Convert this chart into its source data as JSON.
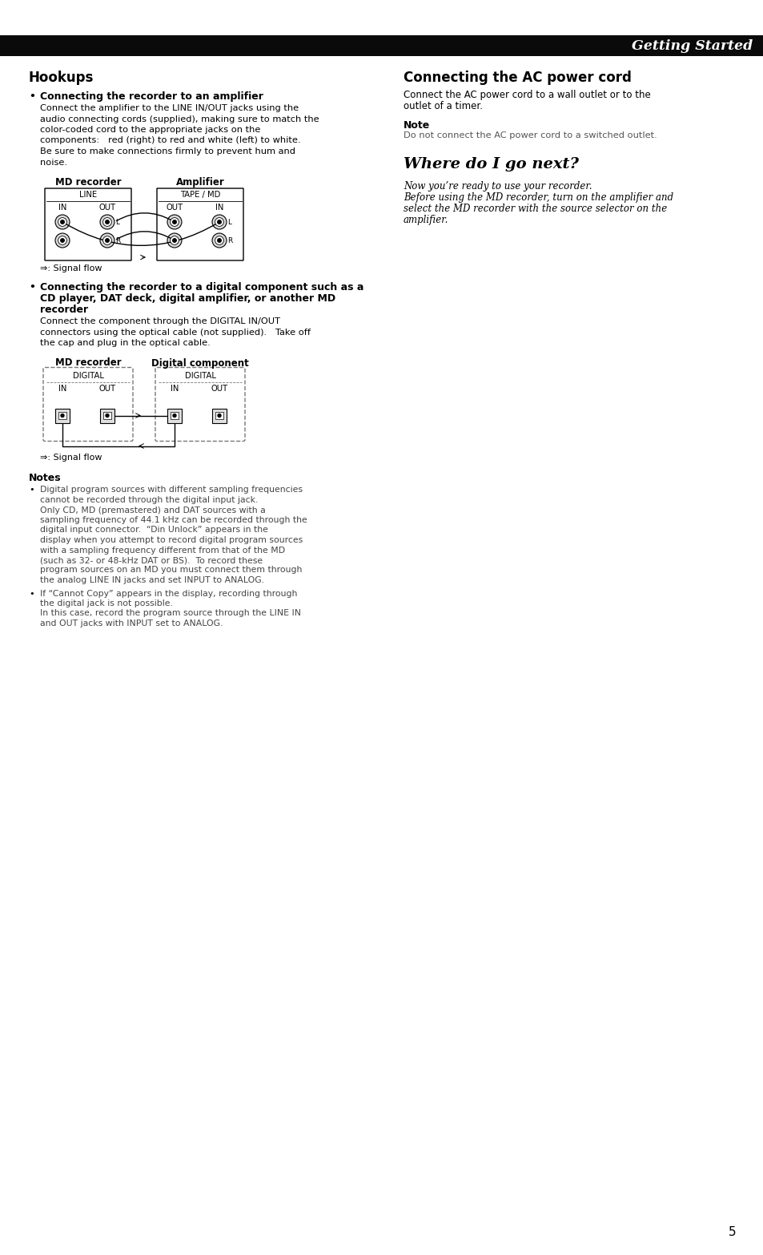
{
  "page_bg": "#ffffff",
  "header_bg": "#0a0a0a",
  "header_text": "Getting Started",
  "header_text_color": "#ffffff",
  "page_number": "5",
  "sections": {
    "hookups_title": "Hookups",
    "bullet1_title": "Connecting the recorder to an amplifier",
    "bullet1_body1": "Connect the amplifier to the LINE IN/OUT jacks using the",
    "bullet1_body2": "audio connecting cords (supplied), making sure to match the",
    "bullet1_body3": "color-coded cord to the appropriate jacks on the",
    "bullet1_body4": "components:   red (right) to red and white (left) to white.",
    "bullet1_body5": "Be sure to make connections firmly to prevent hum and",
    "bullet1_body6": "noise.",
    "diagram1_label_left": "MD recorder",
    "diagram1_label_right": "Amplifier",
    "diagram1_sub_left": "LINE",
    "diagram1_sub_right": "TAPE / MD",
    "signal_flow1": "⇒: Signal flow",
    "bullet2_title1": "Connecting the recorder to a digital component such as a",
    "bullet2_title2": "CD player, DAT deck, digital amplifier, or another MD",
    "bullet2_title3": "recorder",
    "bullet2_body1": "Connect the component through the DIGITAL IN/OUT",
    "bullet2_body2": "connectors using the optical cable (not supplied).   Take off",
    "bullet2_body3": "the cap and plug in the optical cable.",
    "diagram2_label_left": "MD recorder",
    "diagram2_label_right": "Digital component",
    "diagram2_sub_left": "DIGITAL",
    "diagram2_sub_right": "DIGITAL",
    "signal_flow2": "⇒: Signal flow",
    "notes_title": "Notes",
    "note1_lines": [
      "Digital program sources with different sampling frequencies",
      "cannot be recorded through the digital input jack.",
      "Only CD, MD (premastered) and DAT sources with a",
      "sampling frequency of 44.1 kHz can be recorded through the",
      "digital input connector.  “Din Unlock” appears in the",
      "display when you attempt to record digital program sources",
      "with a sampling frequency different from that of the MD",
      "(such as 32- or 48-kHz DAT or BS).  To record these",
      "program sources on an MD you must connect them through",
      "the analog LINE IN jacks and set INPUT to ANALOG."
    ],
    "note2_lines": [
      "If “Cannot Copy” appears in the display, recording through",
      "the digital jack is not possible.",
      "In this case, record the program source through the LINE IN",
      "and OUT jacks with INPUT set to ANALOG."
    ],
    "right_section1_title": "Connecting the AC power cord",
    "right_section1_body1": "Connect the AC power cord to a wall outlet or to the",
    "right_section1_body2": "outlet of a timer.",
    "right_note_title": "Note",
    "right_note_body": "Do not connect the AC power cord to a switched outlet.",
    "right_section2_title": "Where do I go next?",
    "right_section2_body1": "Now you’re ready to use your recorder.",
    "right_section2_body2": "Before using the MD recorder, turn on the amplifier and",
    "right_section2_body3": "select the MD recorder with the source selector on the",
    "right_section2_body4": "amplifier."
  }
}
